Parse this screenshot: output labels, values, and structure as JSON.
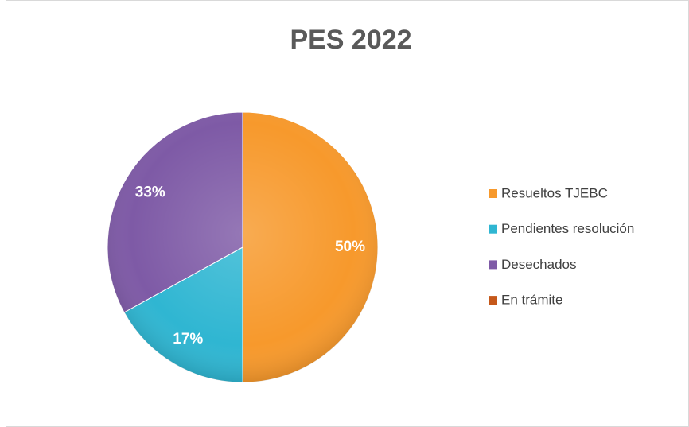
{
  "chart_data": {
    "type": "pie",
    "title": "PES 2022",
    "categories": [
      "Resueltos TJEBC",
      "Pendientes resolución",
      "Desechados",
      "En trámite"
    ],
    "values": [
      50,
      17,
      33,
      0
    ],
    "value_labels": [
      "50%",
      "17%",
      "33%",
      null
    ],
    "colors": [
      "#f7992c",
      "#2fb6d2",
      "#7e5aa6",
      "#c5581a"
    ],
    "legend": "right"
  }
}
